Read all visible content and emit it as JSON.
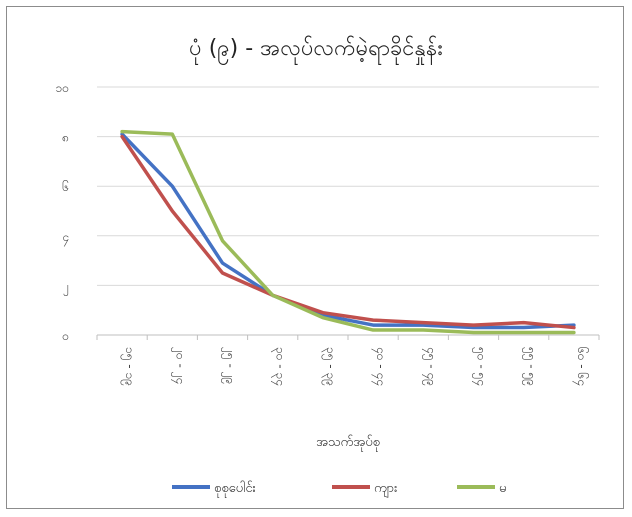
{
  "chart_data": {
    "type": "line",
    "title": "ပုံ (၉) - အလုပ်လက်မဲ့ရာခိုင်နှုန်း",
    "xlabel": "အသက်အုပ်စု",
    "ylabel": "",
    "ylim": [
      0,
      10
    ],
    "yticks": [
      0,
      2,
      4,
      6,
      8,
      10
    ],
    "ytick_labels": [
      "၀",
      "၂",
      "၄",
      "၆",
      "၈",
      "၁၀"
    ],
    "categories": [
      "၁၅ - ၁၉",
      "၂၀ - ၂၄",
      "၂၅ - ၂၉",
      "၃၀ - ၃၄",
      "၃၅ - ၃၉",
      "၄၀ - ၄၄",
      "၄၅ - ၄၉",
      "၅၀ - ၅၄",
      "၅၅ - ၅၉",
      "၆၀ - ၆၄"
    ],
    "grid": true,
    "legend_position": "bottom",
    "series": [
      {
        "name": "စုစုပေါင်း",
        "color": "#4472c4",
        "values": [
          8.1,
          6.0,
          2.9,
          1.6,
          0.8,
          0.4,
          0.4,
          0.3,
          0.3,
          0.4
        ]
      },
      {
        "name": "ကျား",
        "color": "#c0504d",
        "values": [
          8.0,
          5.0,
          2.5,
          1.6,
          0.9,
          0.6,
          0.5,
          0.4,
          0.5,
          0.3
        ]
      },
      {
        "name": "မ",
        "color": "#9bbb59",
        "values": [
          8.2,
          8.1,
          3.8,
          1.6,
          0.7,
          0.2,
          0.2,
          0.1,
          0.1,
          0.1
        ]
      }
    ]
  }
}
